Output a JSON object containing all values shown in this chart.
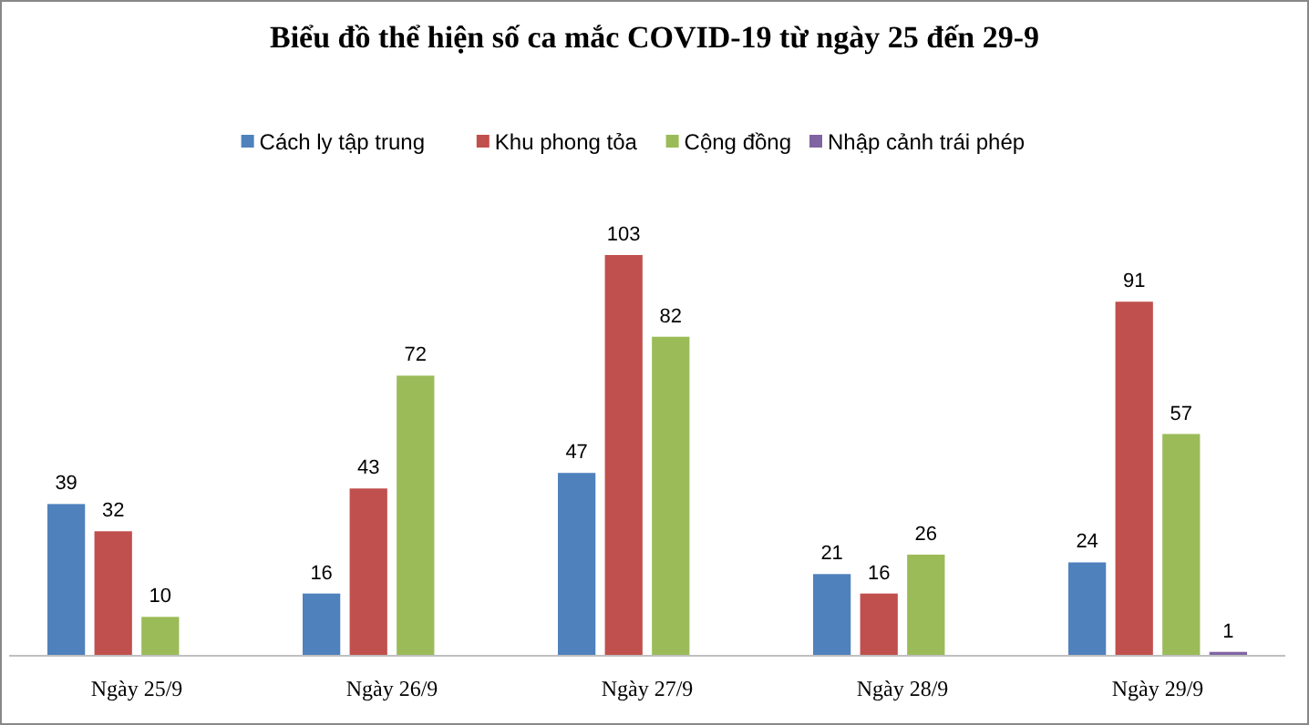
{
  "chart_data": {
    "type": "bar",
    "title": "Biểu đồ thể hiện số ca mắc COVID-19 từ ngày 25 đến 29-9",
    "categories": [
      "Ngày 25/9",
      "Ngày 26/9",
      "Ngày 27/9",
      "Ngày 28/9",
      "Ngày 29/9"
    ],
    "series": [
      {
        "name": "Cách ly tập trung",
        "color": "#4f81bd",
        "values": [
          39,
          16,
          47,
          21,
          24
        ]
      },
      {
        "name": "Khu phong tỏa",
        "color": "#c0504d",
        "values": [
          32,
          43,
          103,
          16,
          91
        ]
      },
      {
        "name": "Cộng đồng",
        "color": "#9bbb59",
        "values": [
          10,
          72,
          82,
          26,
          57
        ]
      },
      {
        "name": "Nhập cảnh trái phép",
        "color": "#8064a2",
        "values": [
          null,
          null,
          null,
          null,
          1
        ]
      }
    ],
    "data_labels": true,
    "legend": "top"
  }
}
